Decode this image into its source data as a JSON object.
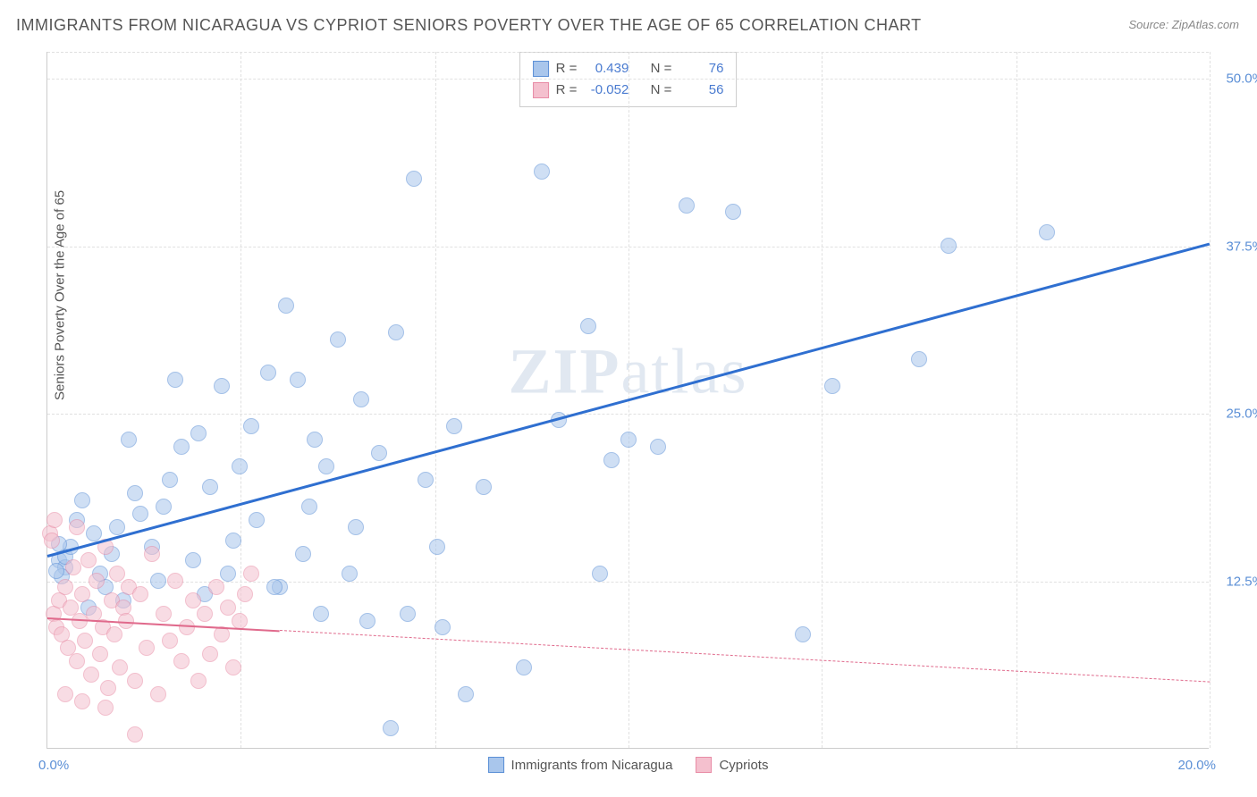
{
  "title": "IMMIGRANTS FROM NICARAGUA VS CYPRIOT SENIORS POVERTY OVER THE AGE OF 65 CORRELATION CHART",
  "source": "Source: ZipAtlas.com",
  "ylabel": "Seniors Poverty Over the Age of 65",
  "watermark": "ZIPatlas",
  "chart": {
    "type": "scatter",
    "background_color": "#ffffff",
    "grid_color": "#e0e0e0",
    "axis_color": "#cccccc",
    "text_color": "#555555",
    "tick_color": "#5b8fd6",
    "xlim": [
      0,
      20
    ],
    "ylim": [
      0,
      52
    ],
    "yticks": [
      {
        "v": 12.5,
        "label": "12.5%"
      },
      {
        "v": 25.0,
        "label": "25.0%"
      },
      {
        "v": 37.5,
        "label": "37.5%"
      },
      {
        "v": 50.0,
        "label": "50.0%"
      }
    ],
    "xgrid": [
      3.33,
      6.67,
      10.0,
      13.33,
      16.67,
      20.0
    ],
    "xtick_left": "0.0%",
    "xtick_right": "20.0%",
    "marker_radius": 9,
    "marker_border": 1.5,
    "marker_opacity": 0.55
  },
  "series": [
    {
      "name": "Immigrants from Nicaragua",
      "fill": "#a9c6ec",
      "stroke": "#5b8fd6",
      "trend_color": "#2f6fd0",
      "trend_width": 3,
      "trend_dash": false,
      "trend_extrap_dash": false,
      "R": "0.439",
      "N": "76",
      "trend": {
        "x1": 0,
        "y1": 14.5,
        "x2": 20,
        "y2": 37.8
      },
      "points": [
        [
          0.2,
          14.0
        ],
        [
          0.3,
          13.5
        ],
        [
          0.25,
          12.8
        ],
        [
          0.15,
          13.2
        ],
        [
          0.3,
          14.3
        ],
        [
          0.4,
          15.0
        ],
        [
          0.2,
          15.2
        ],
        [
          0.5,
          17.0
        ],
        [
          0.6,
          18.5
        ],
        [
          0.8,
          16.0
        ],
        [
          1.0,
          12.0
        ],
        [
          0.9,
          13.0
        ],
        [
          1.1,
          14.5
        ],
        [
          1.2,
          16.5
        ],
        [
          1.4,
          23.0
        ],
        [
          1.5,
          19.0
        ],
        [
          1.6,
          17.5
        ],
        [
          1.8,
          15.0
        ],
        [
          1.9,
          12.5
        ],
        [
          2.0,
          18.0
        ],
        [
          2.1,
          20.0
        ],
        [
          2.3,
          22.5
        ],
        [
          2.5,
          14.0
        ],
        [
          2.6,
          23.5
        ],
        [
          2.8,
          19.5
        ],
        [
          3.0,
          27.0
        ],
        [
          3.1,
          13.0
        ],
        [
          3.3,
          21.0
        ],
        [
          3.5,
          24.0
        ],
        [
          3.6,
          17.0
        ],
        [
          3.8,
          28.0
        ],
        [
          4.0,
          12.0
        ],
        [
          4.1,
          33.0
        ],
        [
          4.3,
          27.5
        ],
        [
          4.4,
          14.5
        ],
        [
          4.6,
          23.0
        ],
        [
          4.8,
          21.0
        ],
        [
          5.0,
          30.5
        ],
        [
          5.2,
          13.0
        ],
        [
          5.4,
          26.0
        ],
        [
          5.5,
          9.5
        ],
        [
          5.7,
          22.0
        ],
        [
          5.9,
          1.5
        ],
        [
          6.0,
          31.0
        ],
        [
          6.2,
          10.0
        ],
        [
          6.3,
          42.5
        ],
        [
          6.5,
          20.0
        ],
        [
          6.8,
          9.0
        ],
        [
          7.0,
          24.0
        ],
        [
          7.2,
          4.0
        ],
        [
          7.5,
          19.5
        ],
        [
          8.2,
          6.0
        ],
        [
          8.5,
          43.0
        ],
        [
          8.8,
          24.5
        ],
        [
          9.3,
          31.5
        ],
        [
          9.5,
          13.0
        ],
        [
          9.7,
          21.5
        ],
        [
          10.0,
          23.0
        ],
        [
          10.5,
          22.5
        ],
        [
          11.0,
          40.5
        ],
        [
          11.8,
          40.0
        ],
        [
          13.0,
          8.5
        ],
        [
          13.5,
          27.0
        ],
        [
          15.0,
          29.0
        ],
        [
          15.5,
          37.5
        ],
        [
          17.2,
          38.5
        ],
        [
          2.2,
          27.5
        ],
        [
          3.2,
          15.5
        ],
        [
          4.5,
          18.0
        ],
        [
          5.3,
          16.5
        ],
        [
          6.7,
          15.0
        ],
        [
          1.3,
          11.0
        ],
        [
          0.7,
          10.5
        ],
        [
          2.7,
          11.5
        ],
        [
          3.9,
          12.0
        ],
        [
          4.7,
          10.0
        ]
      ]
    },
    {
      "name": "Cypriots",
      "fill": "#f4c0ce",
      "stroke": "#e88ba5",
      "trend_color": "#e06a8c",
      "trend_width": 2,
      "trend_dash": false,
      "trend_extrap_dash": true,
      "R": "-0.052",
      "N": "56",
      "trend": {
        "x1": 0,
        "y1": 9.8,
        "x2": 20,
        "y2": 5.0
      },
      "solid_until_x": 4.0,
      "points": [
        [
          0.1,
          10.0
        ],
        [
          0.15,
          9.0
        ],
        [
          0.2,
          11.0
        ],
        [
          0.25,
          8.5
        ],
        [
          0.3,
          12.0
        ],
        [
          0.35,
          7.5
        ],
        [
          0.4,
          10.5
        ],
        [
          0.45,
          13.5
        ],
        [
          0.5,
          6.5
        ],
        [
          0.55,
          9.5
        ],
        [
          0.6,
          11.5
        ],
        [
          0.65,
          8.0
        ],
        [
          0.7,
          14.0
        ],
        [
          0.75,
          5.5
        ],
        [
          0.8,
          10.0
        ],
        [
          0.85,
          12.5
        ],
        [
          0.9,
          7.0
        ],
        [
          0.95,
          9.0
        ],
        [
          1.0,
          15.0
        ],
        [
          1.05,
          4.5
        ],
        [
          1.1,
          11.0
        ],
        [
          1.15,
          8.5
        ],
        [
          1.2,
          13.0
        ],
        [
          1.25,
          6.0
        ],
        [
          1.3,
          10.5
        ],
        [
          1.35,
          9.5
        ],
        [
          1.4,
          12.0
        ],
        [
          1.5,
          5.0
        ],
        [
          1.6,
          11.5
        ],
        [
          1.7,
          7.5
        ],
        [
          1.8,
          14.5
        ],
        [
          1.9,
          4.0
        ],
        [
          2.0,
          10.0
        ],
        [
          2.1,
          8.0
        ],
        [
          2.2,
          12.5
        ],
        [
          2.3,
          6.5
        ],
        [
          2.4,
          9.0
        ],
        [
          2.5,
          11.0
        ],
        [
          2.6,
          5.0
        ],
        [
          2.7,
          10.0
        ],
        [
          2.8,
          7.0
        ],
        [
          2.9,
          12.0
        ],
        [
          3.0,
          8.5
        ],
        [
          3.1,
          10.5
        ],
        [
          3.2,
          6.0
        ],
        [
          3.3,
          9.5
        ],
        [
          3.4,
          11.5
        ],
        [
          3.5,
          13.0
        ],
        [
          0.05,
          16.0
        ],
        [
          0.08,
          15.5
        ],
        [
          0.12,
          17.0
        ],
        [
          0.6,
          3.5
        ],
        [
          1.0,
          3.0
        ],
        [
          1.5,
          1.0
        ],
        [
          0.5,
          16.5
        ],
        [
          0.3,
          4.0
        ]
      ]
    }
  ],
  "legend": {
    "r_label": "R =",
    "n_label": "N ="
  }
}
